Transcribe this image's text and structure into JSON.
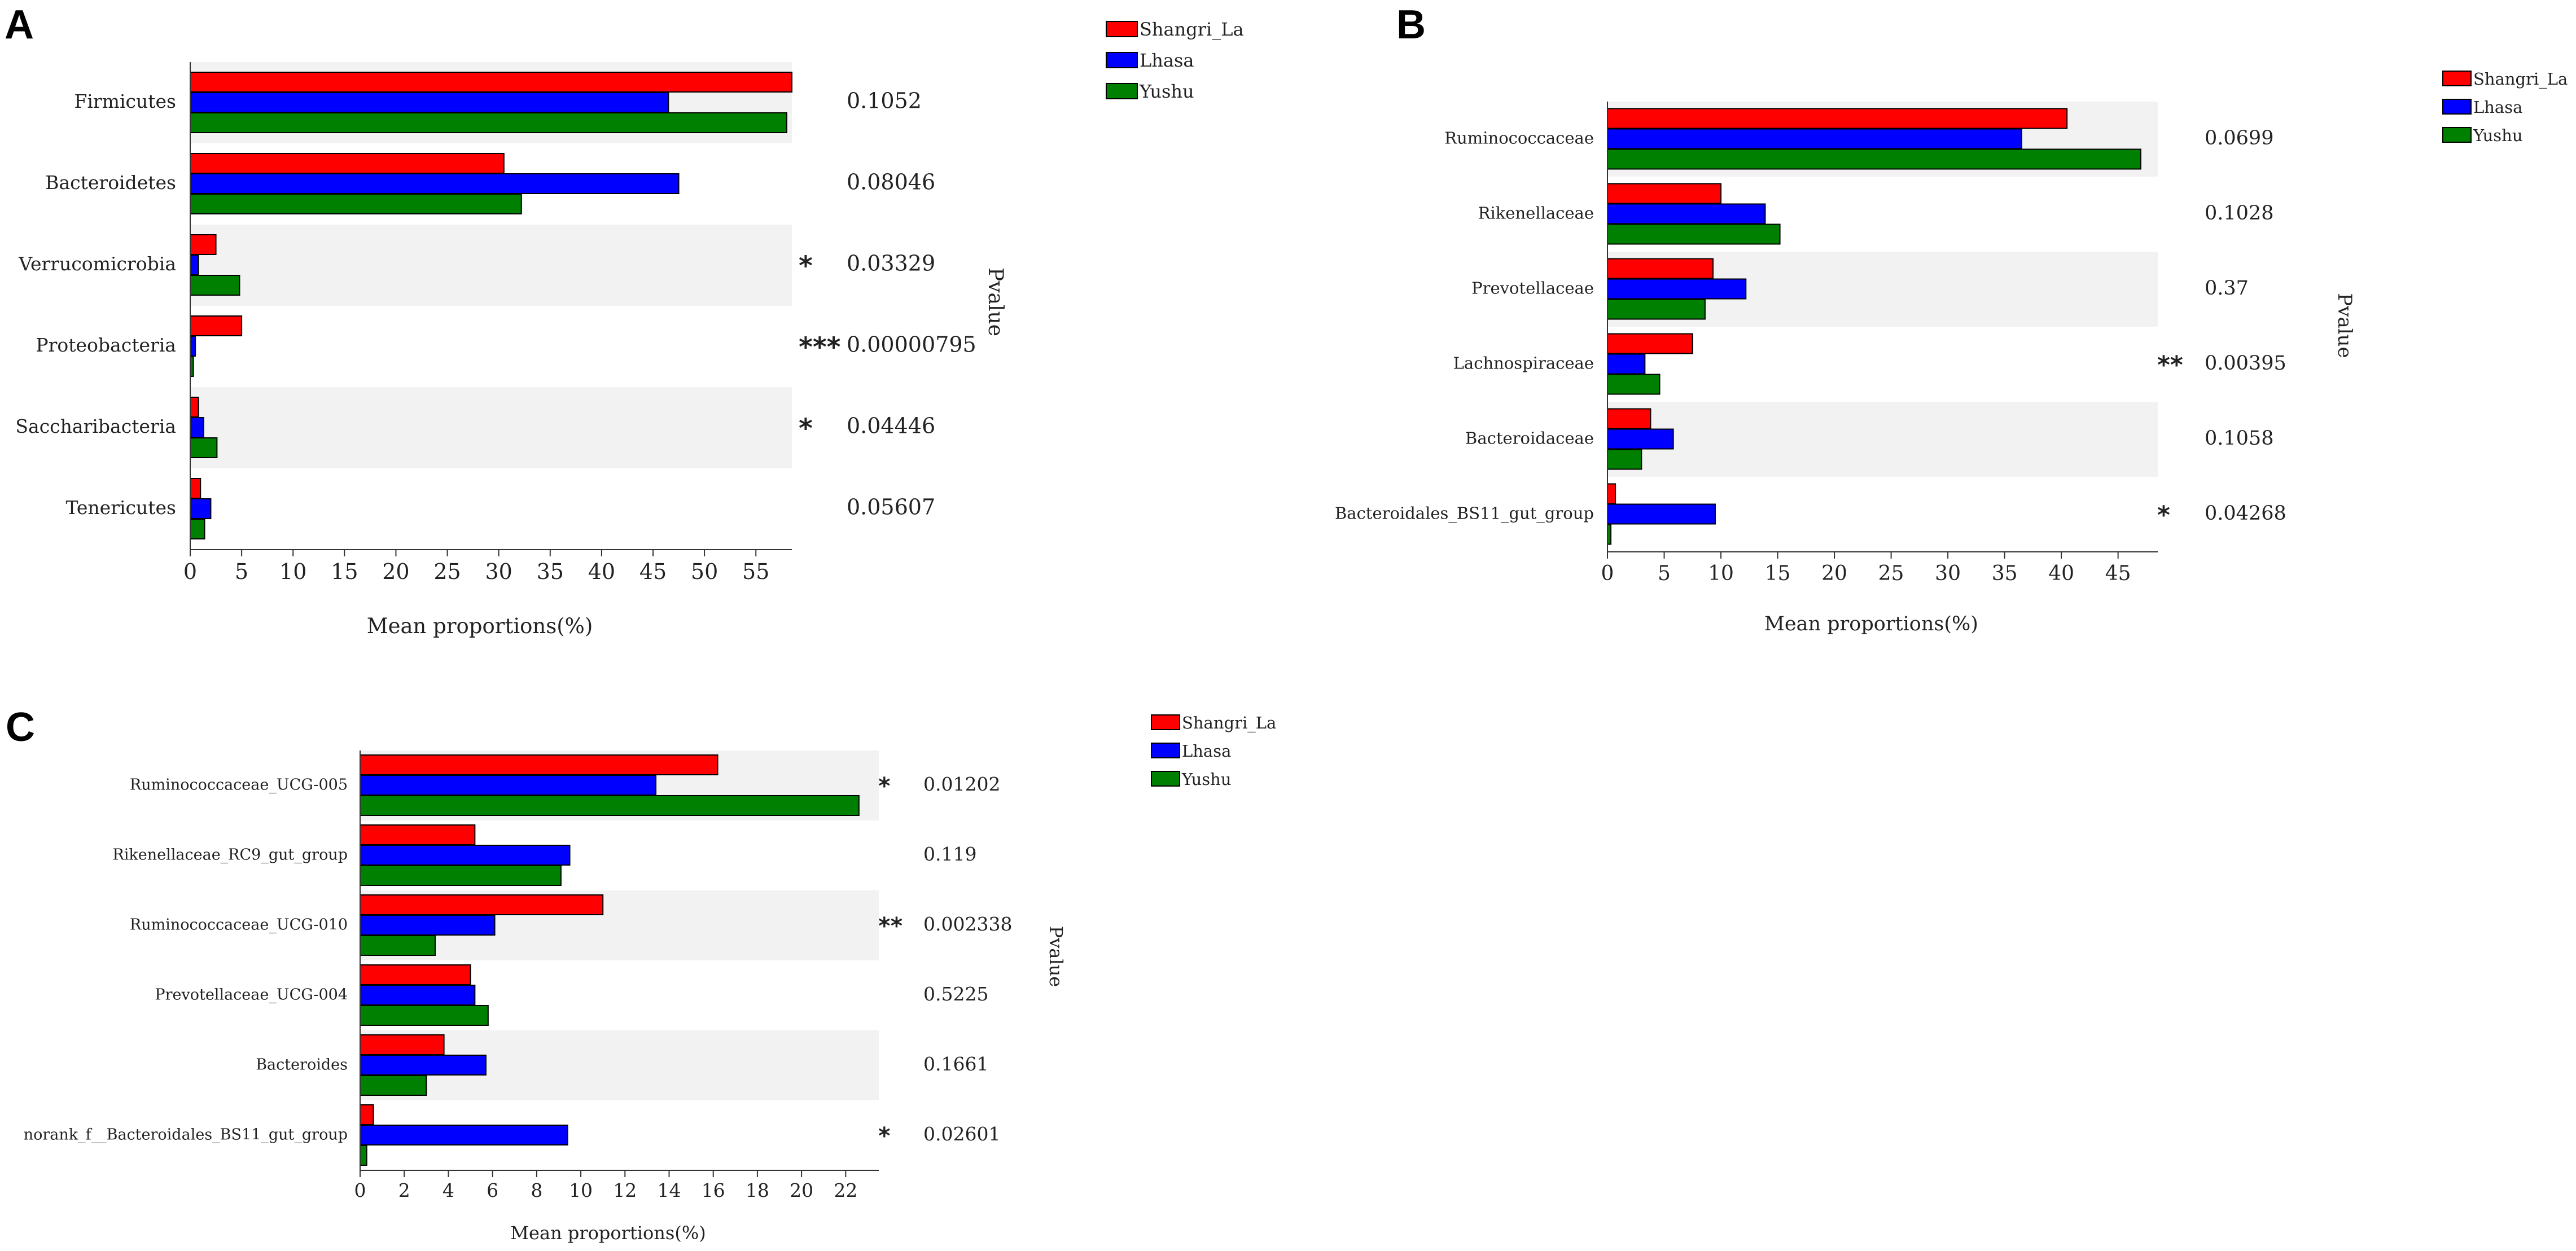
{
  "colors": {
    "series": [
      "#ff0000",
      "#0000ff",
      "#008000"
    ],
    "stripe": "#f2f2f2",
    "star": "#e8626a",
    "axis": "#333333"
  },
  "chart_data": [
    {
      "panel": "A",
      "type": "bar",
      "orientation": "horizontal",
      "categories": [
        "Firmicutes",
        "Bacteroidetes",
        "Verrucomicrobia",
        "Proteobacteria",
        "Saccharibacteria",
        "Tenericutes"
      ],
      "series": [
        {
          "name": "Shangri_La",
          "values": [
            58.5,
            30.5,
            2.5,
            5.0,
            0.8,
            1.0
          ]
        },
        {
          "name": "Lhasa",
          "values": [
            46.5,
            47.5,
            0.8,
            0.5,
            1.3,
            2.0
          ]
        },
        {
          "name": "Yushu",
          "values": [
            58.0,
            32.2,
            4.8,
            0.3,
            2.6,
            1.4
          ]
        }
      ],
      "pvalues": [
        "0.1052",
        "0.08046",
        "0.03329",
        "0.00000795",
        "0.04446",
        "0.05607"
      ],
      "significance": [
        "",
        "",
        "*",
        "***",
        "*",
        ""
      ],
      "xlabel": "Mean proportions(%)",
      "pvalue_label": "Pvalue",
      "xlim": [
        0,
        58.5
      ],
      "xticks": [
        0,
        5,
        10,
        15,
        20,
        25,
        30,
        35,
        40,
        45,
        50,
        55
      ],
      "legend_position": "top-right"
    },
    {
      "panel": "B",
      "type": "bar",
      "orientation": "horizontal",
      "categories": [
        "Ruminococcaceae",
        "Rikenellaceae",
        "Prevotellaceae",
        "Lachnospiraceae",
        "Bacteroidaceae",
        "Bacteroidales_BS11_gut_group"
      ],
      "series": [
        {
          "name": "Shangri_La",
          "values": [
            40.5,
            10.0,
            9.3,
            7.5,
            3.8,
            0.7
          ]
        },
        {
          "name": "Lhasa",
          "values": [
            36.5,
            13.9,
            12.2,
            3.3,
            5.8,
            9.5
          ]
        },
        {
          "name": "Yushu",
          "values": [
            47.0,
            15.2,
            8.6,
            4.6,
            3.0,
            0.3
          ]
        }
      ],
      "pvalues": [
        "0.0699",
        "0.1028",
        "0.37",
        "0.00395",
        "0.1058",
        "0.04268"
      ],
      "significance": [
        "",
        "",
        "",
        "**",
        "",
        "*"
      ],
      "xlabel": "Mean proportions(%)",
      "pvalue_label": "Pvalue",
      "xlim": [
        0,
        48.5
      ],
      "xticks": [
        0,
        5,
        10,
        15,
        20,
        25,
        30,
        35,
        40,
        45
      ],
      "legend_position": "top-right"
    },
    {
      "panel": "C",
      "type": "bar",
      "orientation": "horizontal",
      "categories": [
        "Ruminococcaceae_UCG-005",
        "Rikenellaceae_RC9_gut_group",
        "Ruminococcaceae_UCG-010",
        "Prevotellaceae_UCG-004",
        "Bacteroides",
        "norank_f__Bacteroidales_BS11_gut_group"
      ],
      "series": [
        {
          "name": "Shangri_La",
          "values": [
            16.2,
            5.2,
            11.0,
            5.0,
            3.8,
            0.6
          ]
        },
        {
          "name": "Lhasa",
          "values": [
            13.4,
            9.5,
            6.1,
            5.2,
            5.7,
            9.4
          ]
        },
        {
          "name": "Yushu",
          "values": [
            22.6,
            9.1,
            3.4,
            5.8,
            3.0,
            0.3
          ]
        }
      ],
      "pvalues": [
        "0.01202",
        "0.119",
        "0.002338",
        "0.5225",
        "0.1661",
        "0.02601"
      ],
      "significance": [
        "*",
        "",
        "**",
        "",
        "",
        "*"
      ],
      "xlabel": "Mean proportions(%)",
      "pvalue_label": "Pvalue",
      "xlim": [
        0,
        23.5
      ],
      "xticks": [
        0,
        2,
        4,
        6,
        8,
        10,
        12,
        14,
        16,
        18,
        20,
        22
      ],
      "legend_position": "top-right"
    }
  ]
}
